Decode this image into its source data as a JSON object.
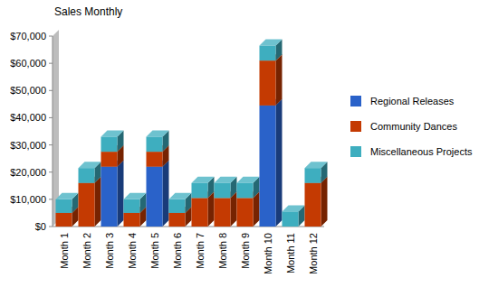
{
  "chart_data": {
    "type": "bar",
    "title": "Sales Monthly",
    "stacked": true,
    "legend": "right",
    "grid": false,
    "categories": [
      "Month 1",
      "Month 2",
      "Month 3",
      "Month 4",
      "Month 5",
      "Month 6",
      "Month 7",
      "Month 8",
      "Month 9",
      "Month 10",
      "Month 11",
      "Month 12"
    ],
    "series": [
      {
        "name": "Regional Releases",
        "color": "#2a62c9",
        "values": [
          0,
          0,
          22000,
          0,
          22000,
          0,
          0,
          0,
          0,
          44500,
          0,
          0
        ]
      },
      {
        "name": "Community Dances",
        "color": "#c43a02",
        "values": [
          5000,
          16000,
          5500,
          5000,
          5500,
          5000,
          10500,
          10500,
          10500,
          16500,
          0,
          16000
        ]
      },
      {
        "name": "Miscellaneous Projects",
        "color": "#3eaebf",
        "values": [
          5000,
          5500,
          5500,
          5000,
          5500,
          5000,
          5500,
          5500,
          5500,
          5500,
          5500,
          5500
        ]
      }
    ],
    "ylim": [
      0,
      70000
    ],
    "yticks": [
      {
        "value": 0,
        "label": "$0"
      },
      {
        "value": 10000,
        "label": "$10,000"
      },
      {
        "value": 20000,
        "label": "$20,000"
      },
      {
        "value": 30000,
        "label": "$30,000"
      },
      {
        "value": 40000,
        "label": "$40,000"
      },
      {
        "value": 50000,
        "label": "$50,000"
      },
      {
        "value": 60000,
        "label": "$60,000"
      },
      {
        "value": 70000,
        "label": "$70,000"
      }
    ]
  }
}
